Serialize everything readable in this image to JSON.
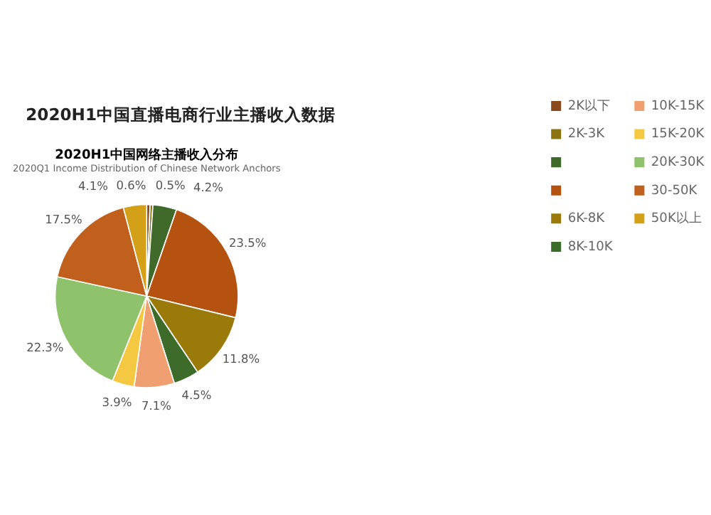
{
  "chart_data": {
    "type": "pie",
    "title": "2020H1中国网络主播收入分布",
    "subtitle": "2020Q1 Income Distribution of Chinese Network Anchors",
    "annotations": [
      "2020H1中国直播电商行业主播收入数据"
    ],
    "categories": [
      "2K以下",
      "2K-3K",
      null,
      null,
      "6K-8K",
      "8K-10K",
      "10K-15K",
      "15K-20K",
      "20K-30K",
      "30-50K",
      "50K以上"
    ],
    "values": [
      0.6,
      0.5,
      4.2,
      23.5,
      11.8,
      4.5,
      7.1,
      3.9,
      22.3,
      17.5,
      4.1
    ],
    "value_labels": [
      "0.6%",
      "0.5%",
      "4.2%",
      "23.5%",
      "11.8%",
      "4.5%",
      "7.1%",
      "3.9%",
      "22.3%",
      "17.5%",
      "4.1%"
    ],
    "colors": [
      "#8a4a1c",
      "#8a7412",
      "#3f6a2a",
      "#b5520f",
      "#9a7b0a",
      "#3d6b2a",
      "#f0a070",
      "#f5c842",
      "#8fc36b",
      "#c0601c",
      "#d4a017"
    ],
    "legend": "right"
  }
}
